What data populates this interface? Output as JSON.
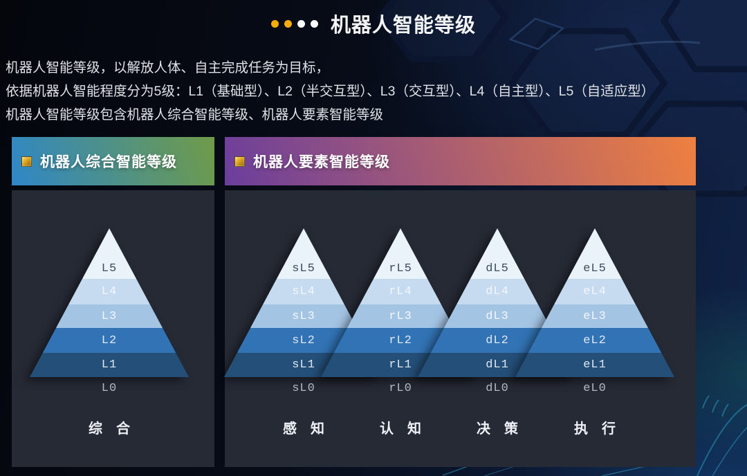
{
  "title_bar": {
    "title": "机器人智能等级",
    "dot_colors": [
      "#f6ac06",
      "#f6ac06",
      "#ffffff",
      "#ffffff"
    ]
  },
  "intro": {
    "lines": [
      "机器人智能等级，以解放人体、自主完成任务为目标，",
      "依据机器人智能程度分为5级：L1（基础型）、L2（半交互型）、L3（交互型）、L4（自主型）、L5（自适应型）",
      "机器人智能等级包含机器人综合智能等级、机器人要素智能等级"
    ]
  },
  "panels": [
    {
      "id": "comprehensive",
      "header": "机器人综合智能等级",
      "header_gradient": [
        "#2e87c8",
        "#6f9b48"
      ],
      "pyramids": [
        {
          "id": "comprehensive",
          "levels": [
            "L5",
            "L4",
            "L3",
            "L2",
            "L1"
          ],
          "base_label": "L0",
          "category": "综合"
        }
      ]
    },
    {
      "id": "elements",
      "header": "机器人要素智能等级",
      "header_gradient": [
        "#6b3e9d",
        "#ee8040"
      ],
      "pyramids": [
        {
          "id": "perception",
          "levels": [
            "sL5",
            "sL4",
            "sL3",
            "sL2",
            "sL1"
          ],
          "base_label": "sL0",
          "category": "感知"
        },
        {
          "id": "cognition",
          "levels": [
            "rL5",
            "rL4",
            "rL3",
            "rL2",
            "rL1"
          ],
          "base_label": "rL0",
          "category": "认知"
        },
        {
          "id": "decision",
          "levels": [
            "dL5",
            "dL4",
            "dL3",
            "dL2",
            "dL1"
          ],
          "base_label": "dL0",
          "category": "决策"
        },
        {
          "id": "execution",
          "levels": [
            "eL5",
            "eL4",
            "eL3",
            "eL2",
            "eL1"
          ],
          "base_label": "eL0",
          "category": "执行"
        }
      ]
    }
  ],
  "pyramid_style": {
    "layer_colors": [
      "#eaf2fa",
      "#c6dbef",
      "#a4c4e4",
      "#3173b4",
      "#244f79"
    ],
    "top_label_color": "#3d4c60",
    "light_label_color": "#f3f7fc",
    "mid_label_color": "#dfe8f2",
    "base_label_color": "#b3bac4"
  }
}
